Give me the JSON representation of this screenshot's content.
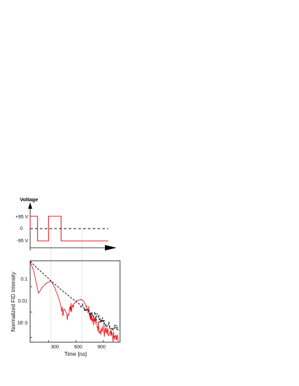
{
  "colors": {
    "red": "#e8141b",
    "black": "#111111",
    "gridline": "#8a8a8a",
    "noise_gray": "#555555"
  },
  "chart_data": [
    {
      "type": "line",
      "title": "Voltage",
      "xlabel": "",
      "ylabel": "",
      "x_unit": "ns",
      "y_ticks": [
        "+95 V",
        "0",
        "-95 V"
      ],
      "xlim": [
        100,
        1080
      ],
      "ylim": [
        -110,
        110
      ],
      "series": [
        {
          "name": "",
          "color": "#e8141b",
          "style": "solid",
          "x": [
            100,
            100,
            190,
            190,
            325,
            325,
            480,
            480,
            1060
          ],
          "y": [
            0,
            95,
            95,
            -95,
            -95,
            95,
            95,
            -95,
            -95
          ]
        },
        {
          "name": "",
          "color": "#111111",
          "style": "dashed",
          "x": [
            100,
            1060
          ],
          "y": [
            0,
            0
          ]
        }
      ],
      "vertical_guides_x": [
        325,
        665
      ]
    },
    {
      "type": "line",
      "xlabel": "Time [ns]",
      "ylabel": "Normalized FID Intensity",
      "xscale": "linear",
      "yscale": "log",
      "xlim": [
        100,
        1080
      ],
      "ylim": [
        0.00065,
        1.05
      ],
      "x_ticks": [
        "300",
        "600",
        "900"
      ],
      "y_ticks": [
        "0.1",
        "0.01",
        "1E-3"
      ],
      "series": [
        {
          "name": "",
          "color": "#e8141b",
          "style": "solid",
          "x": [
            100,
            140,
            190,
            235,
            280,
            325,
            365,
            410,
            450,
            480,
            510,
            560,
            610,
            665,
            720,
            780,
            850,
            900,
            950,
            1000,
            1060
          ],
          "y": [
            1.0,
            0.4,
            0.055,
            0.1,
            0.14,
            0.17,
            0.1,
            0.035,
            0.012,
            0.007,
            0.009,
            0.018,
            0.028,
            0.032,
            0.017,
            0.006,
            0.0025,
            0.0018,
            0.0013,
            0.001,
            0.0008
          ]
        },
        {
          "name": "",
          "color": "#111111",
          "style": "dashed",
          "x": [
            100,
            200,
            300,
            400,
            500,
            600,
            700,
            800,
            900,
            950,
            1000,
            1060
          ],
          "y": [
            1.0,
            0.45,
            0.21,
            0.1,
            0.05,
            0.026,
            0.014,
            0.0075,
            0.0042,
            0.0032,
            0.0026,
            0.0022
          ]
        }
      ],
      "vertical_guides_x": [
        325,
        665
      ]
    }
  ]
}
